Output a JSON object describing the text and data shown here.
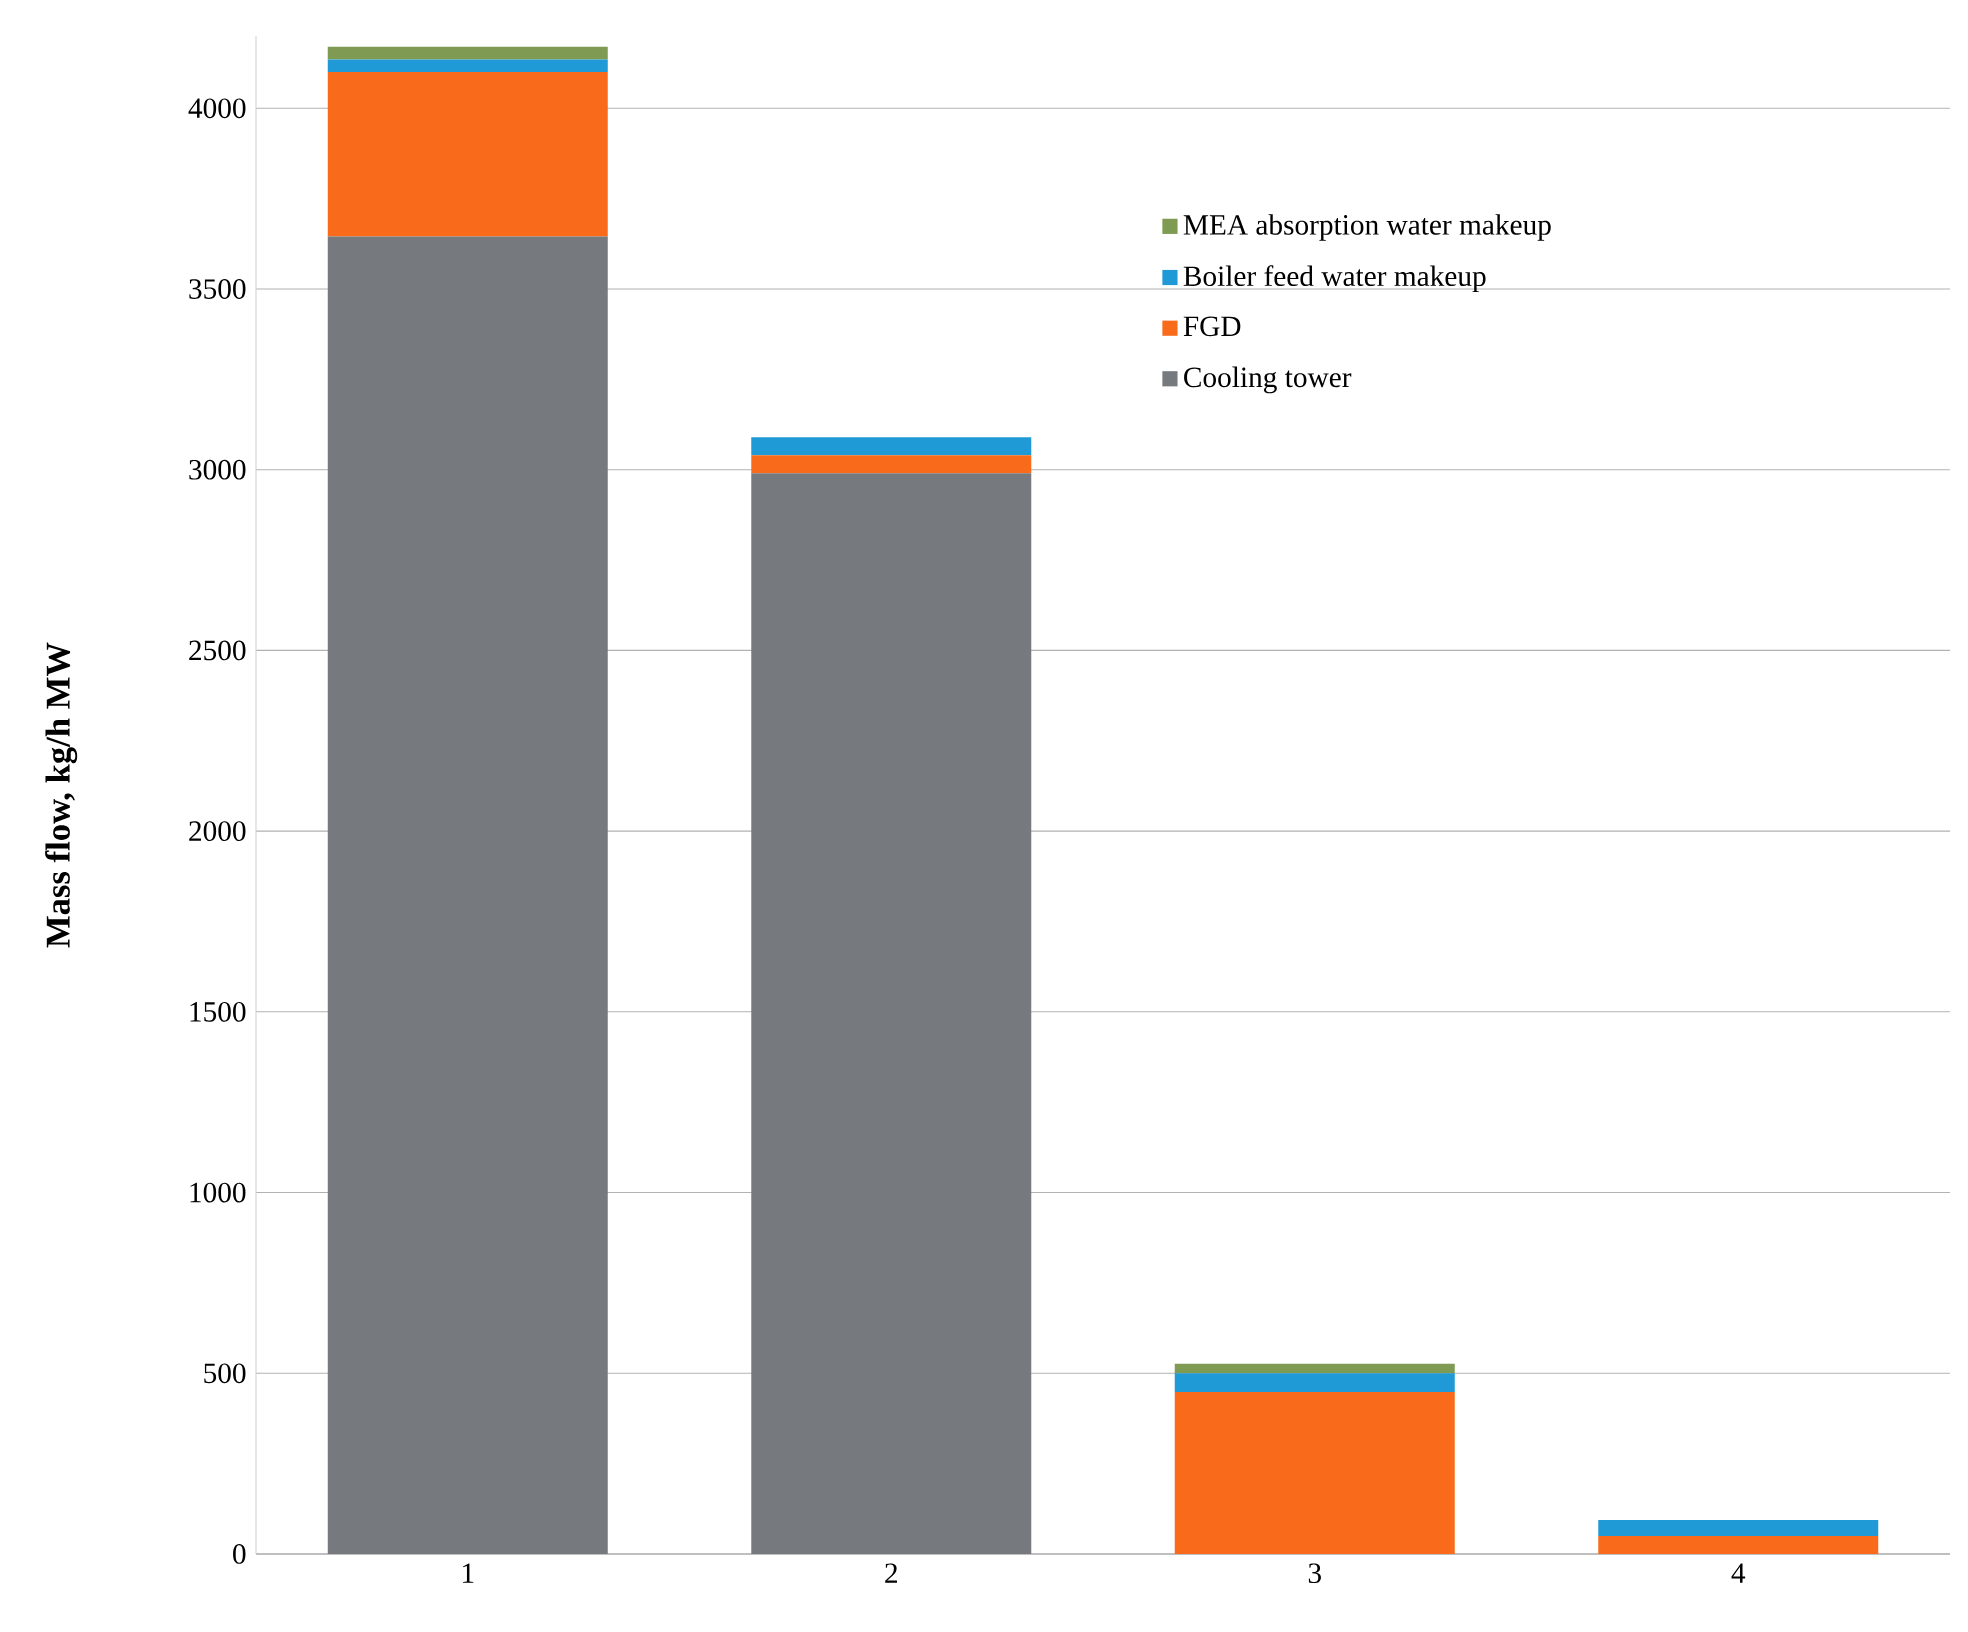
{
  "chart_data": {
    "type": "bar",
    "stacked": true,
    "ylabel": "Mass flow, kg/h MW",
    "categories": [
      "1",
      "2",
      "3",
      "4"
    ],
    "series": [
      {
        "name": "Cooling tower",
        "color": "#767a7f",
        "values": [
          3645,
          2990,
          0,
          0
        ]
      },
      {
        "name": "FGD",
        "color": "#f96b1a",
        "values": [
          455,
          50,
          448,
          50
        ]
      },
      {
        "name": "Boiler feed water makeup",
        "color": "#1f9ad6",
        "values": [
          35,
          50,
          52,
          44
        ]
      },
      {
        "name": "MEA absorption water makeup",
        "color": "#7f9a52",
        "values": [
          35,
          0,
          26,
          0
        ]
      }
    ],
    "yticks": [
      0,
      500,
      1000,
      1500,
      2000,
      2500,
      3000,
      3500,
      4000
    ],
    "ylim": [
      0,
      4200
    ],
    "grid": "y",
    "legend": "top right"
  }
}
